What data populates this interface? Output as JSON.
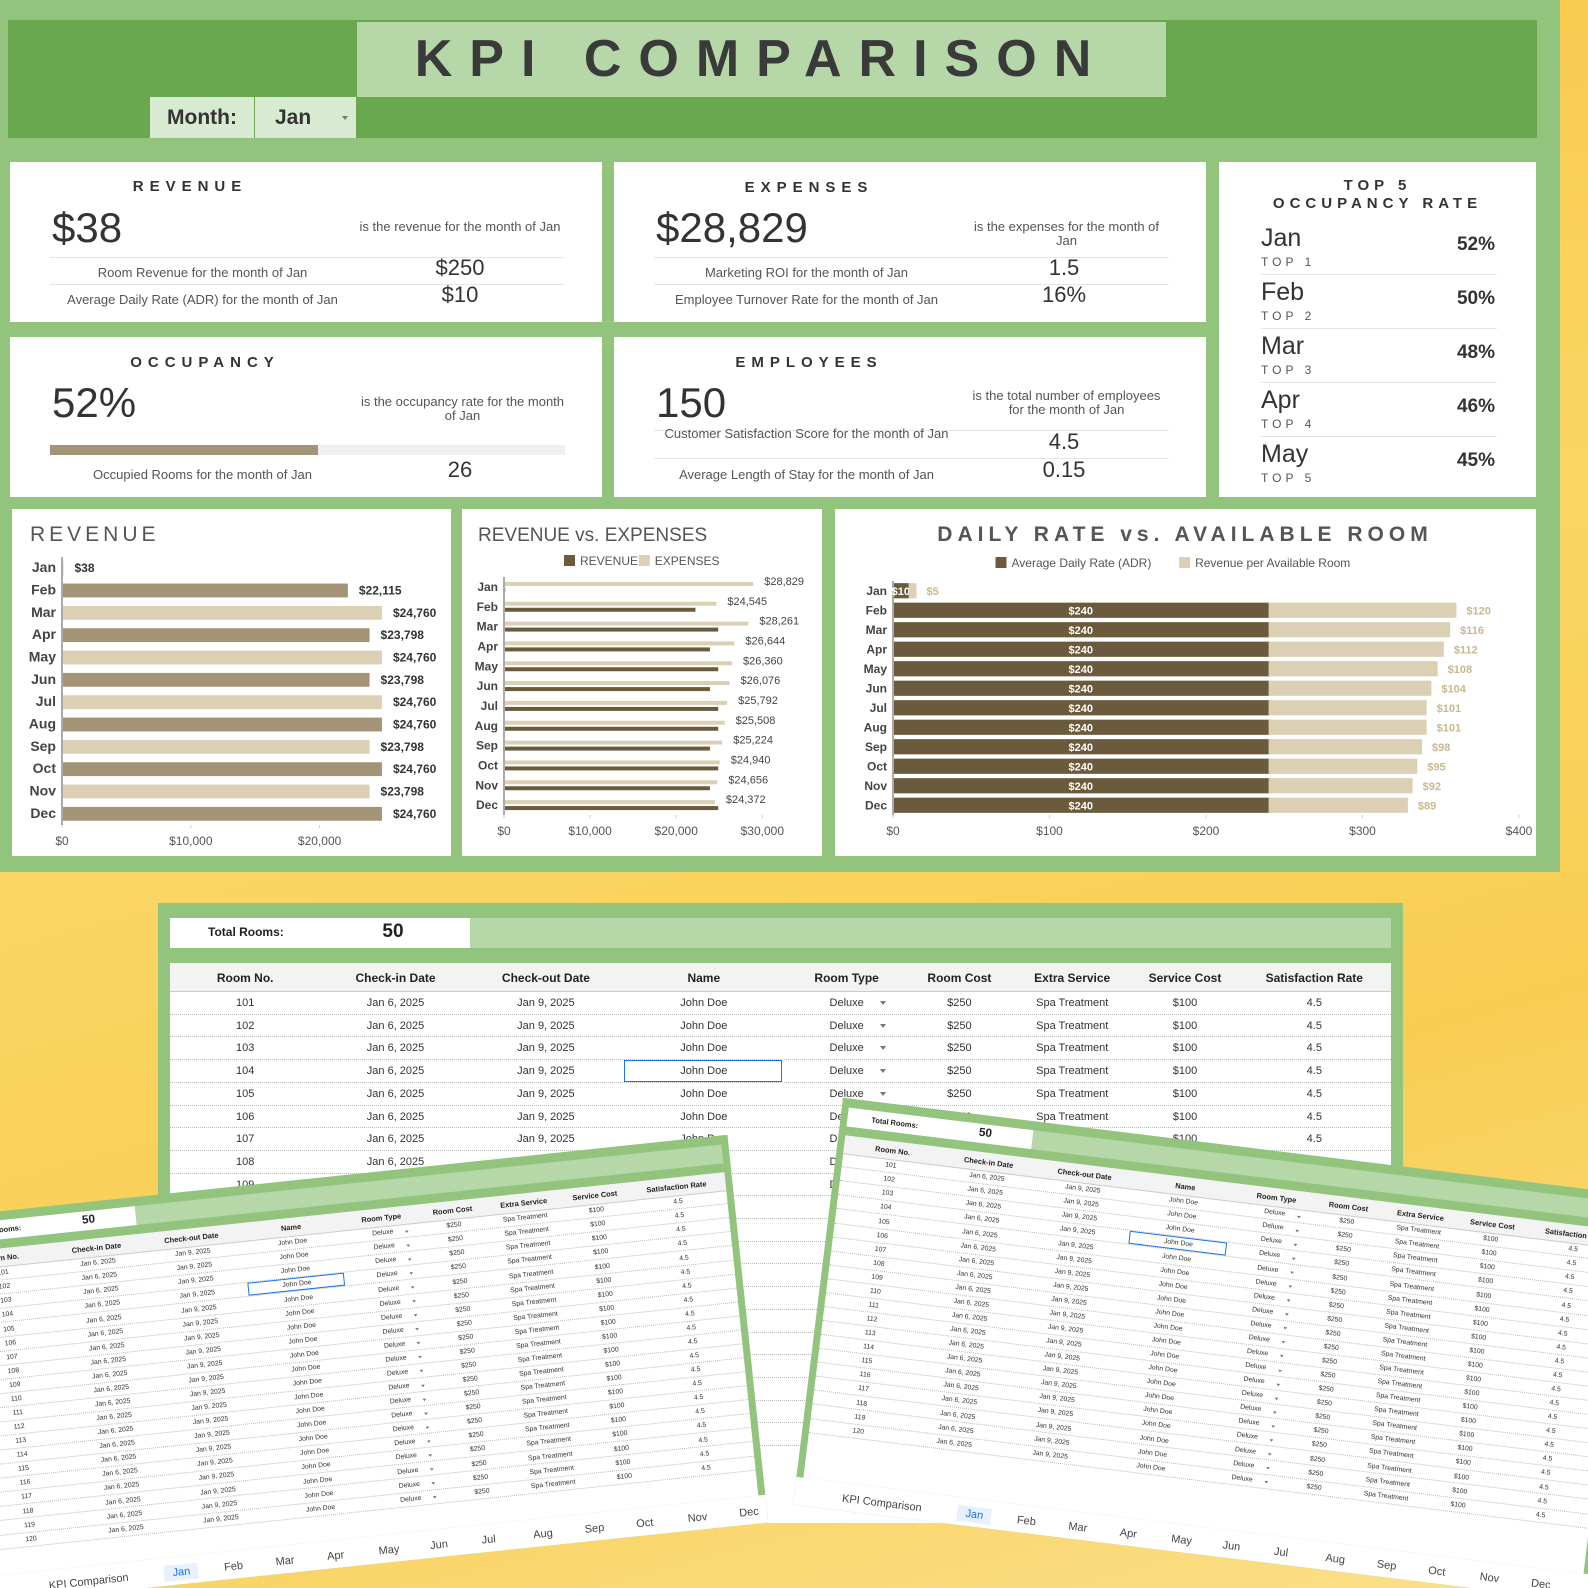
{
  "header": {
    "title": "KPI COMPARISON",
    "month_label": "Month:",
    "month": "Jan"
  },
  "kpis": {
    "revenue": {
      "title": "REVENUE",
      "value": "$38",
      "caption": "is the revenue for the month of Jan",
      "rows": [
        {
          "label": "Room Revenue for the month of Jan",
          "value": "$250"
        },
        {
          "label": "Average Daily Rate (ADR) for the month of Jan",
          "value": "$10"
        }
      ]
    },
    "expenses": {
      "title": "EXPENSES",
      "value": "$28,829",
      "caption": "is the expenses for the month of Jan",
      "rows": [
        {
          "label": "Marketing ROI for the month of Jan",
          "value": "1.5"
        },
        {
          "label": "Employee Turnover Rate for the month of Jan",
          "value": "16%"
        }
      ]
    },
    "occupancy": {
      "title": "OCCUPANCY",
      "value": "52%",
      "rate": 52,
      "caption": "is the occupancy rate for the month of Jan",
      "rows": [
        {
          "label": "Occupied Rooms for the month of Jan",
          "value": "26"
        }
      ]
    },
    "employees": {
      "title": "EMPLOYEES",
      "value": "150",
      "caption": "is the total number of employees for the month of Jan",
      "rows": [
        {
          "label": "Customer Satisfaction Score for the month of Jan",
          "value": "4.5"
        },
        {
          "label": "Average Length of Stay for the month of Jan",
          "value": "0.15"
        }
      ]
    }
  },
  "top5": {
    "title_line1": "TOP 5",
    "title_line2": "OCCUPANCY RATE",
    "items": [
      {
        "month": "Jan",
        "rank": "TOP 1",
        "rate": "52%"
      },
      {
        "month": "Feb",
        "rank": "TOP 2",
        "rate": "50%"
      },
      {
        "month": "Mar",
        "rank": "TOP 3",
        "rate": "48%"
      },
      {
        "month": "Apr",
        "rank": "TOP 4",
        "rate": "46%"
      },
      {
        "month": "May",
        "rank": "TOP 5",
        "rate": "45%"
      }
    ]
  },
  "chart_data": [
    {
      "type": "bar",
      "orientation": "horizontal",
      "title": "REVENUE",
      "categories": [
        "Jan",
        "Feb",
        "Mar",
        "Apr",
        "May",
        "Jun",
        "Jul",
        "Aug",
        "Sep",
        "Oct",
        "Nov",
        "Dec"
      ],
      "values": [
        38,
        22115,
        24760,
        23798,
        24760,
        23798,
        24760,
        24760,
        23798,
        24760,
        23798,
        24760
      ],
      "value_labels": [
        "$38",
        "$22,115",
        "$24,760",
        "$23,798",
        "$24,760",
        "$23,798",
        "$24,760",
        "$24,760",
        "$23,798",
        "$24,760",
        "$23,798",
        "$24,760"
      ],
      "colors": [
        "#dcd0b4",
        "#a39477",
        "#dcd0b4",
        "#a39477",
        "#dcd0b4",
        "#a39477",
        "#dcd0b4",
        "#a39477",
        "#dcd0b4",
        "#a39477",
        "#dcd0b4",
        "#a39477"
      ],
      "xlim": [
        0,
        29500
      ],
      "xticks": [
        {
          "value": 0,
          "label": "$0"
        },
        {
          "value": 10000,
          "label": "$10,000"
        },
        {
          "value": 20000,
          "label": "$20,000"
        }
      ]
    },
    {
      "type": "bar",
      "orientation": "horizontal",
      "title": "REVENUE vs. EXPENSES",
      "categories": [
        "Jan",
        "Feb",
        "Mar",
        "Apr",
        "May",
        "Jun",
        "Jul",
        "Aug",
        "Sep",
        "Oct",
        "Nov",
        "Dec"
      ],
      "series": [
        {
          "name": "REVENUE",
          "color": "#6b5a3c",
          "values": [
            38,
            22115,
            24760,
            23798,
            24760,
            23798,
            24760,
            24760,
            23798,
            24760,
            23798,
            24760
          ]
        },
        {
          "name": "EXPENSES",
          "color": "#dcd0b4",
          "values": [
            28829,
            24545,
            28261,
            26644,
            26360,
            26076,
            25792,
            25508,
            25224,
            24940,
            24656,
            24372
          ],
          "value_labels": [
            "$28,829",
            "$24,545",
            "$28,261",
            "$26,644",
            "$26,360",
            "$26,076",
            "$25,792",
            "$25,508",
            "$25,224",
            "$24,940",
            "$24,656",
            "$24,372"
          ]
        }
      ],
      "xlim": [
        0,
        36000
      ],
      "xticks": [
        {
          "value": 0,
          "label": "$0"
        },
        {
          "value": 10000,
          "label": "$10,000"
        },
        {
          "value": 20000,
          "label": "$20,000"
        },
        {
          "value": 30000,
          "label": "$30,000"
        }
      ]
    },
    {
      "type": "bar",
      "orientation": "horizontal",
      "stacked": true,
      "title": "DAILY RATE vs. AVAILABLE ROOM",
      "categories": [
        "Jan",
        "Feb",
        "Mar",
        "Apr",
        "May",
        "Jun",
        "Jul",
        "Aug",
        "Sep",
        "Oct",
        "Nov",
        "Dec"
      ],
      "series": [
        {
          "name": "Average Daily Rate (ADR)",
          "color": "#6b5a3c",
          "values": [
            10,
            240,
            240,
            240,
            240,
            240,
            240,
            240,
            240,
            240,
            240,
            240
          ],
          "value_labels": [
            "$10",
            "$240",
            "$240",
            "$240",
            "$240",
            "$240",
            "$240",
            "$240",
            "$240",
            "$240",
            "$240",
            "$240"
          ]
        },
        {
          "name": "Revenue per Available Room",
          "color": "#dcd0b4",
          "values": [
            5,
            120,
            116,
            112,
            108,
            104,
            101,
            101,
            98,
            95,
            92,
            89
          ],
          "value_labels": [
            "$5",
            "$120",
            "$116",
            "$112",
            "$108",
            "$104",
            "$101",
            "$101",
            "$98",
            "$95",
            "$92",
            "$89"
          ]
        }
      ],
      "xlim": [
        0,
        400
      ],
      "xticks": [
        {
          "value": 0,
          "label": "$0"
        },
        {
          "value": 100,
          "label": "$100"
        },
        {
          "value": 200,
          "label": "$200"
        },
        {
          "value": 300,
          "label": "$300"
        },
        {
          "value": 400,
          "label": "$400"
        }
      ]
    }
  ],
  "sheet": {
    "total_rooms_label": "Total Rooms:",
    "total_rooms": "50",
    "columns": [
      "Room No.",
      "Check-in Date",
      "Check-out Date",
      "Name",
      "Room Type",
      "Room Cost",
      "Extra Service",
      "Service Cost",
      "Satisfaction Rate"
    ],
    "rows": [
      [
        "101",
        "Jan 6, 2025",
        "Jan 9, 2025",
        "John Doe",
        "Deluxe",
        "$250",
        "Spa Treatment",
        "$100",
        "4.5"
      ],
      [
        "102",
        "Jan 6, 2025",
        "Jan 9, 2025",
        "John Doe",
        "Deluxe",
        "$250",
        "Spa Treatment",
        "$100",
        "4.5"
      ],
      [
        "103",
        "Jan 6, 2025",
        "Jan 9, 2025",
        "John Doe",
        "Deluxe",
        "$250",
        "Spa Treatment",
        "$100",
        "4.5"
      ],
      [
        "104",
        "Jan 6, 2025",
        "Jan 9, 2025",
        "John Doe",
        "Deluxe",
        "$250",
        "Spa Treatment",
        "$100",
        "4.5"
      ],
      [
        "105",
        "Jan 6, 2025",
        "Jan 9, 2025",
        "John Doe",
        "Deluxe",
        "$250",
        "Spa Treatment",
        "$100",
        "4.5"
      ],
      [
        "106",
        "Jan 6, 2025",
        "Jan 9, 2025",
        "John Doe",
        "Deluxe",
        "$250",
        "Spa Treatment",
        "$100",
        "4.5"
      ],
      [
        "107",
        "Jan 6, 2025",
        "Jan 9, 2025",
        "John Doe",
        "Deluxe",
        "$250",
        "Spa Treatment",
        "$100",
        "4.5"
      ],
      [
        "108",
        "Jan 6, 2025",
        "Jan 9, 2025",
        "John Doe",
        "Deluxe",
        "$250",
        "Spa Treatment",
        "$100",
        "4.5"
      ],
      [
        "109",
        "Jan 6, 2025",
        "Jan 9, 2025",
        "John Doe",
        "Deluxe",
        "$250",
        "Spa Treatment",
        "$100",
        "4.5"
      ],
      [
        "110",
        "Jan 6, 2025",
        "Jan 9, 2025",
        "John Doe",
        "Deluxe",
        "$250",
        "Spa Treatment",
        "$100",
        "4.5"
      ],
      [
        "111",
        "Jan 6, 2025",
        "Jan 9, 2025",
        "John Doe",
        "Deluxe",
        "$250",
        "Spa Treatment",
        "$100",
        "4.5"
      ],
      [
        "112",
        "Jan 6, 2025",
        "Jan 9, 2025",
        "John Doe",
        "Deluxe",
        "$250",
        "Spa Treatment",
        "$100",
        "4.5"
      ],
      [
        "113",
        "Jan 6, 2025",
        "Jan 9, 2025",
        "John Doe",
        "Deluxe",
        "$250",
        "Spa Treatment",
        "$100",
        "4.5"
      ],
      [
        "114",
        "Jan 6, 2025",
        "Jan 9, 2025",
        "John Doe",
        "Deluxe",
        "$250",
        "Spa Treatment",
        "$100",
        "4.5"
      ],
      [
        "115",
        "Jan 6, 2025",
        "Jan 9, 2025",
        "John Doe",
        "Deluxe",
        "$250",
        "Spa Treatment",
        "$100",
        "4.5"
      ],
      [
        "116",
        "Jan 6, 2025",
        "Jan 9, 2025",
        "John Doe",
        "Deluxe",
        "$250",
        "Spa Treatment",
        "$100",
        "4.5"
      ],
      [
        "117",
        "Jan 6, 2025",
        "Jan 9, 2025",
        "John Doe",
        "Deluxe",
        "$250",
        "Spa Treatment",
        "$100",
        "4.5"
      ],
      [
        "118",
        "Jan 6, 2025",
        "Jan 9, 2025",
        "John Doe",
        "Deluxe",
        "$250",
        "Spa Treatment",
        "$100",
        "4.5"
      ],
      [
        "119",
        "Jan 6, 2025",
        "Jan 9, 2025",
        "John Doe",
        "Deluxe",
        "$250",
        "Spa Treatment",
        "$100",
        "4.5"
      ],
      [
        "120",
        "Jan 6, 2025",
        "Jan 9, 2025",
        "John Doe",
        "Deluxe",
        "$250",
        "Spa Treatment",
        "$100",
        "4.5"
      ]
    ],
    "tabs": [
      "KPI Comparison",
      "Jan",
      "Feb",
      "Mar",
      "Apr",
      "May",
      "Jun",
      "Jul",
      "Aug",
      "Sep",
      "Oct",
      "Nov",
      "Dec"
    ]
  }
}
